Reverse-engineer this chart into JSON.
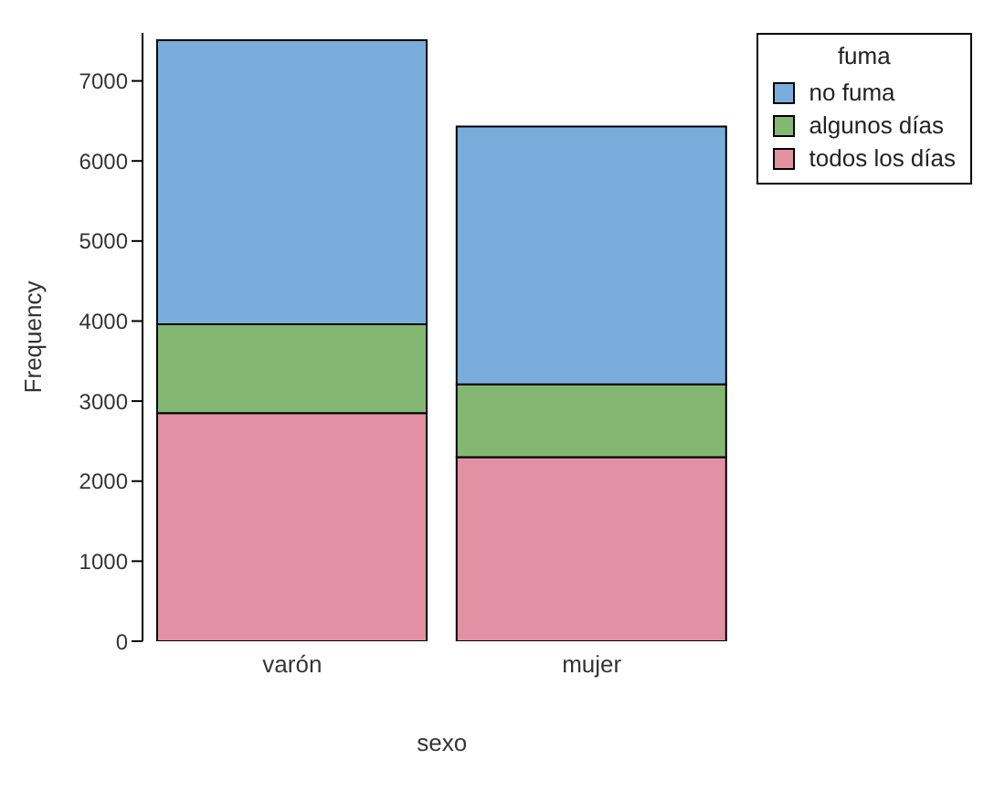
{
  "chart_data": {
    "type": "bar",
    "stacked": true,
    "xlabel": "sexo",
    "ylabel": "Frequency",
    "legend_title": "fuma",
    "legend": "top right",
    "categories": [
      "varón",
      "mujer"
    ],
    "series": [
      {
        "name": "todos los días",
        "color": "#e291a4",
        "values": [
          2850,
          2300
        ]
      },
      {
        "name": "algunos días",
        "color": "#84b872",
        "values": [
          1110,
          910
        ]
      },
      {
        "name": "no fuma",
        "color": "#7aaddc",
        "values": [
          3550,
          3220
        ]
      }
    ],
    "ylim": [
      0,
      7600
    ],
    "yticks": [
      0,
      1000,
      2000,
      3000,
      4000,
      5000,
      6000,
      7000
    ],
    "grid": false
  }
}
